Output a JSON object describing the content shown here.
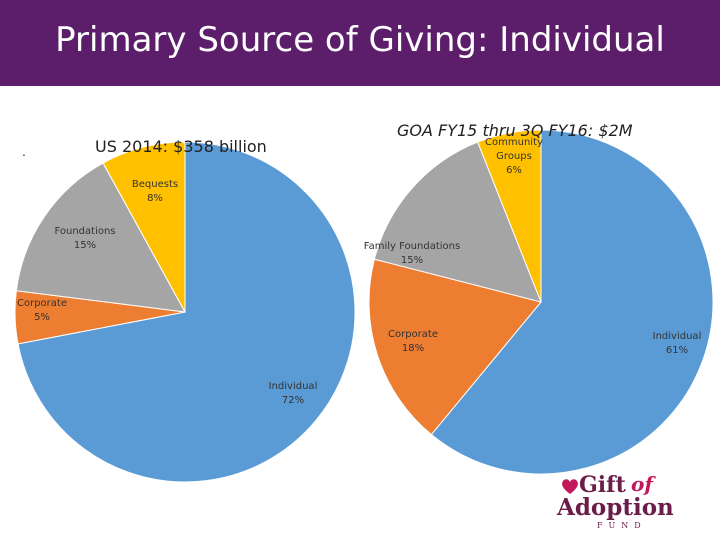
{
  "header": {
    "title": "Primary Source of Giving:  Individual"
  },
  "stray_mark": ".",
  "colors": {
    "banner": "#5c1e6b",
    "individual": "#5b9bd5",
    "corporate": "#ed7d31",
    "foundations": "#a5a5a5",
    "bequests_community": "#ffc000"
  },
  "chart_data": [
    {
      "type": "pie",
      "title": "US 2014:  $358 billion",
      "start_angle_deg": 0,
      "slices": [
        {
          "label": "Individual",
          "value": 72,
          "value_label": "72%",
          "color": "#5b9bd5"
        },
        {
          "label": "Corporate",
          "value": 5,
          "value_label": "5%",
          "color": "#ed7d31"
        },
        {
          "label": "Foundations",
          "value": 15,
          "value_label": "15%",
          "color": "#a5a5a5"
        },
        {
          "label": "Bequests",
          "value": 8,
          "value_label": "8%",
          "color": "#ffc000"
        }
      ]
    },
    {
      "type": "pie",
      "title": "GOA FY15 thru 3Q FY16:  $2M",
      "start_angle_deg": 0,
      "slices": [
        {
          "label": "Individual",
          "value": 61,
          "value_label": "61%",
          "color": "#5b9bd5"
        },
        {
          "label": "Corporate",
          "value": 18,
          "value_label": "18%",
          "color": "#ed7d31"
        },
        {
          "label": "Family Foundations",
          "value": 15,
          "value_label": "15%",
          "color": "#a5a5a5"
        },
        {
          "label": "Community Groups",
          "value": 6,
          "value_label": "6%",
          "color": "#ffc000"
        }
      ]
    }
  ],
  "logo": {
    "word1": "Gift",
    "word2": "of",
    "word3": "Adoption",
    "word4": "FUND"
  }
}
